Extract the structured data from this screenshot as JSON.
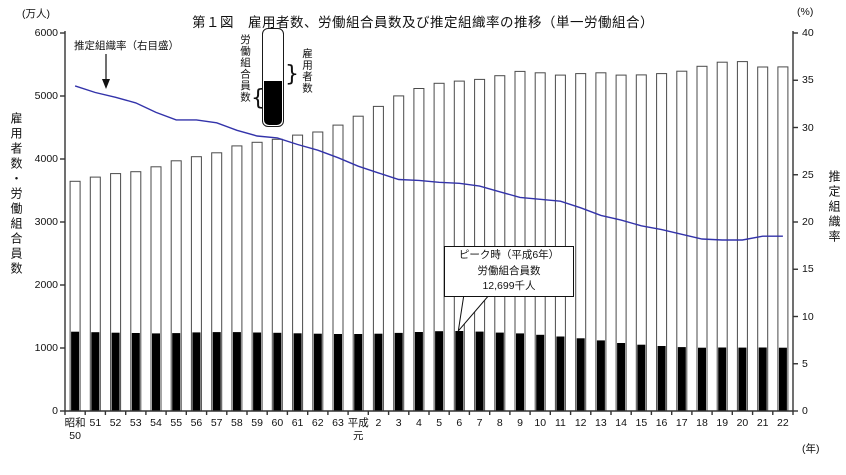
{
  "title": "第１図　雇用者数、労働組合員数及び推定組織率の推移（単一労働組合）",
  "axes": {
    "left_unit": "(万人)",
    "right_unit": "(%)",
    "x_unit": "(年)",
    "left_title": "雇用者数・労働組合員数",
    "right_title": "推定組織率",
    "left_ticks": [
      0,
      1000,
      2000,
      3000,
      4000,
      5000,
      6000
    ],
    "right_ticks": [
      0,
      5,
      10,
      15,
      20,
      25,
      30,
      35,
      40
    ]
  },
  "annotations": {
    "rate_label": "推定組織率（右目盛）",
    "peak_line1": "ピーク時（平成6年）",
    "peak_line2": "労働組合員数",
    "peak_line3": "12,699千人",
    "peak_category_index": 19
  },
  "legend": {
    "union_members": "労働組合員数",
    "employees": "雇用者数",
    "union_brace": "{",
    "employees_brace": "}"
  },
  "chart_data": {
    "type": "bar",
    "note": "stacked look: white full bar = employees, black lower bar = union members; blue line = rate on right axis",
    "categories": [
      [
        "昭和",
        "50"
      ],
      [
        "51"
      ],
      [
        "52"
      ],
      [
        "53"
      ],
      [
        "54"
      ],
      [
        "55"
      ],
      [
        "56"
      ],
      [
        "57"
      ],
      [
        "58"
      ],
      [
        "59"
      ],
      [
        "60"
      ],
      [
        "61"
      ],
      [
        "62"
      ],
      [
        "63"
      ],
      [
        "平成",
        "元"
      ],
      [
        "2"
      ],
      [
        "3"
      ],
      [
        "4"
      ],
      [
        "5"
      ],
      [
        "6"
      ],
      [
        "7"
      ],
      [
        "8"
      ],
      [
        "9"
      ],
      [
        "10"
      ],
      [
        "11"
      ],
      [
        "12"
      ],
      [
        "13"
      ],
      [
        "14"
      ],
      [
        "15"
      ],
      [
        "16"
      ],
      [
        "17"
      ],
      [
        "18"
      ],
      [
        "19"
      ],
      [
        "20"
      ],
      [
        "21"
      ],
      [
        "22"
      ]
    ],
    "series": [
      {
        "name": "雇用者数",
        "type": "bar",
        "axis": "left",
        "unit": "万人",
        "values": [
          3646,
          3712,
          3769,
          3799,
          3876,
          3971,
          4037,
          4098,
          4208,
          4265,
          4313,
          4379,
          4428,
          4538,
          4679,
          4835,
          5002,
          5119,
          5202,
          5236,
          5263,
          5322,
          5391,
          5368,
          5331,
          5356,
          5369,
          5331,
          5335,
          5355,
          5393,
          5472,
          5537,
          5546,
          5460,
          5462
        ]
      },
      {
        "name": "労働組合員数",
        "type": "bar",
        "axis": "left",
        "unit": "万人",
        "values": [
          1259,
          1251,
          1243,
          1238,
          1231,
          1237,
          1247,
          1253,
          1252,
          1246,
          1242,
          1234,
          1227,
          1223,
          1223,
          1227,
          1240,
          1254,
          1266,
          1270,
          1261,
          1245,
          1231,
          1209,
          1183,
          1154,
          1121,
          1080,
          1053,
          1031,
          1014,
          1004,
          1008,
          1007,
          1008,
          1005
        ]
      },
      {
        "name": "推定組織率",
        "type": "line",
        "axis": "right",
        "unit": "%",
        "values": [
          34.4,
          33.7,
          33.2,
          32.6,
          31.6,
          30.8,
          30.8,
          30.5,
          29.7,
          29.1,
          28.9,
          28.2,
          27.6,
          26.8,
          25.9,
          25.2,
          24.5,
          24.4,
          24.2,
          24.1,
          23.8,
          23.2,
          22.6,
          22.4,
          22.2,
          21.5,
          20.7,
          20.2,
          19.6,
          19.2,
          18.7,
          18.2,
          18.1,
          18.1,
          18.5,
          18.5
        ]
      }
    ],
    "ylim_left": [
      0,
      6000
    ],
    "ylim_right": [
      0,
      40
    ],
    "grid": false,
    "colors": {
      "employees_fill": "#ffffff",
      "union_fill": "#000000",
      "bar_stroke": "#4a4a4a",
      "rate_line": "#3333aa",
      "axis": "#333333",
      "text": "#111111"
    }
  }
}
